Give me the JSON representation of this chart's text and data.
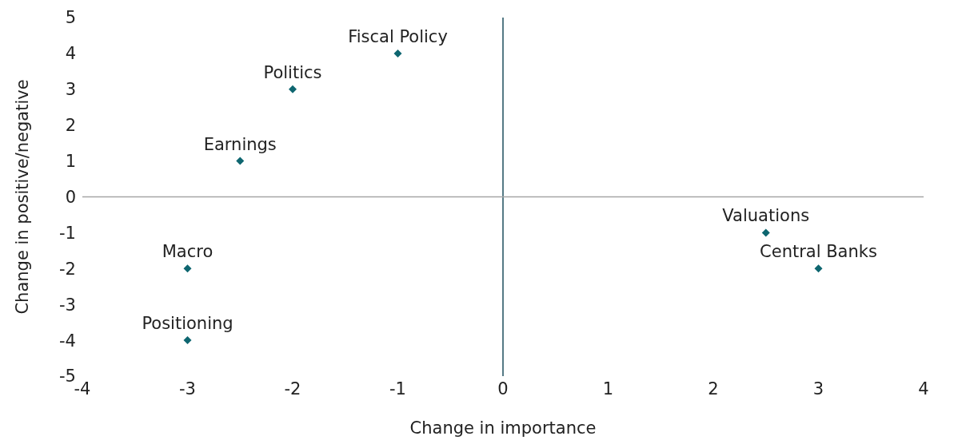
{
  "chart_data": {
    "type": "scatter",
    "xlabel": "Change in importance",
    "ylabel": "Change in positive/negative",
    "x": [
      -1,
      -2,
      -2.5,
      -3,
      -3,
      2.5,
      3
    ],
    "values": [
      4,
      3,
      1,
      -2,
      -4,
      -1,
      -2
    ],
    "color": "#0e6670",
    "marker": "diamond",
    "xlim": [
      -4,
      4
    ],
    "xticks": [
      -4,
      -3,
      -2,
      -1,
      0,
      1,
      2,
      3,
      4
    ],
    "ylim": [
      -5,
      5
    ],
    "yticks": [
      -5,
      -4,
      -3,
      -2,
      -1,
      0,
      1,
      2,
      3,
      4,
      5
    ],
    "grid": false,
    "ref_lines": [
      {
        "axis": "x",
        "value": 0,
        "color": "#1d4e5c"
      },
      {
        "axis": "y",
        "value": 0,
        "color": "#a6a6a6"
      }
    ],
    "annotations": [
      {
        "text": "Fiscal Policy",
        "x": -1,
        "y": 4
      },
      {
        "text": "Politics",
        "x": -2,
        "y": 3
      },
      {
        "text": "Earnings",
        "x": -2.5,
        "y": 1
      },
      {
        "text": "Macro",
        "x": -3,
        "y": -2
      },
      {
        "text": "Positioning",
        "x": -3,
        "y": -4
      },
      {
        "text": "Valuations",
        "x": 2.5,
        "y": -1
      },
      {
        "text": "Central Banks",
        "x": 3,
        "y": -2
      }
    ]
  }
}
